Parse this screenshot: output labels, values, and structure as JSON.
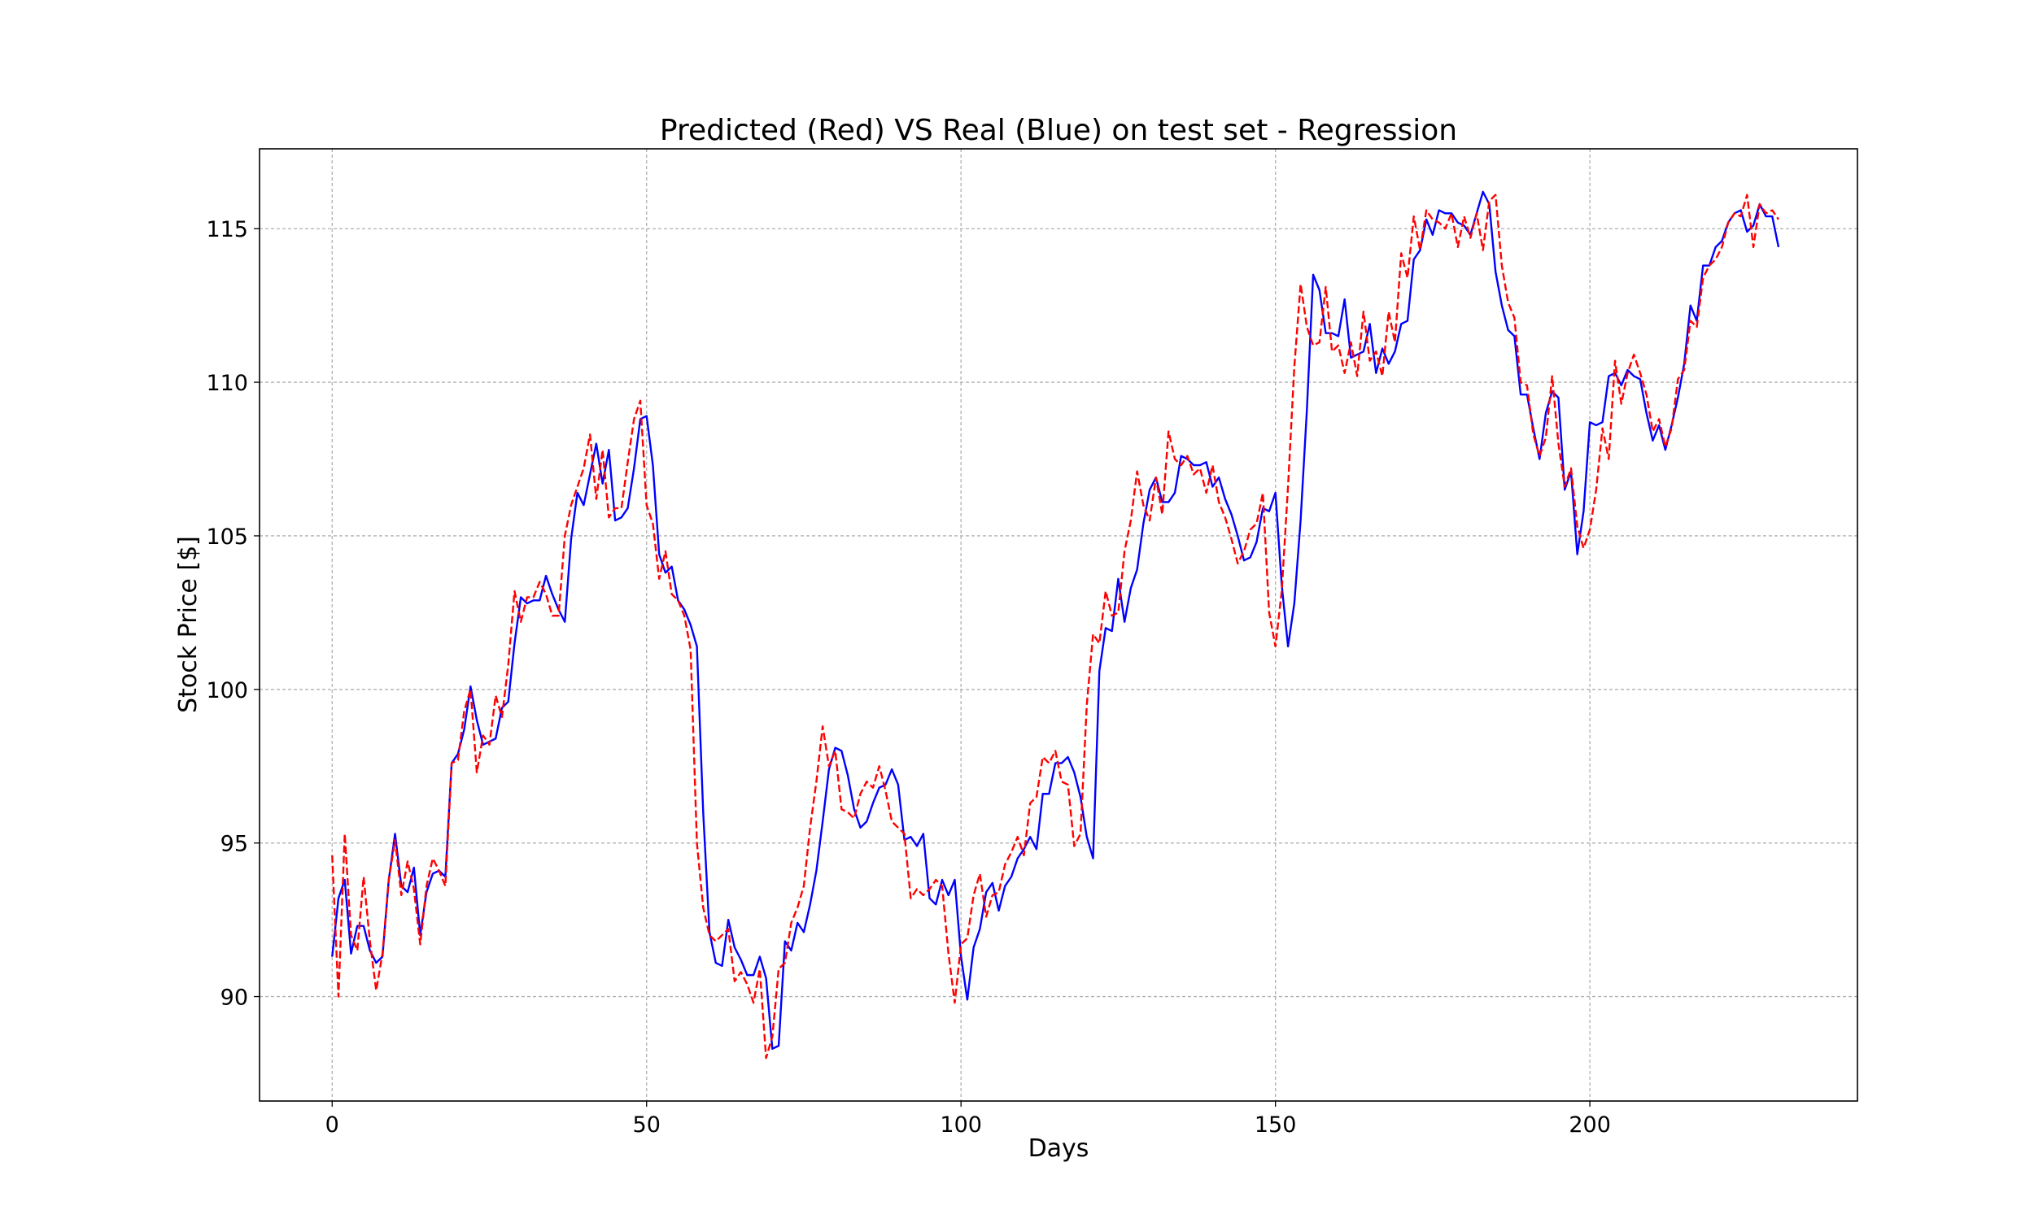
{
  "chart_data": {
    "type": "line",
    "title": "Predicted (Red) VS Real (Blue) on test set - Regression",
    "xlabel": "Days",
    "ylabel": "Stock Price [$]",
    "x": [
      0,
      1,
      2,
      3,
      4,
      5,
      6,
      7,
      8,
      9,
      10,
      11,
      12,
      13,
      14,
      15,
      16,
      17,
      18,
      19,
      20,
      21,
      22,
      23,
      24,
      25,
      26,
      27,
      28,
      29,
      30,
      31,
      32,
      33,
      34,
      35,
      36,
      37,
      38,
      39,
      40,
      41,
      42,
      43,
      44,
      45,
      46,
      47,
      48,
      49,
      50,
      51,
      52,
      53,
      54,
      55,
      56,
      57,
      58,
      59,
      60,
      61,
      62,
      63,
      64,
      65,
      66,
      67,
      68,
      69,
      70,
      71,
      72,
      73,
      74,
      75,
      76,
      77,
      78,
      79,
      80,
      81,
      82,
      83,
      84,
      85,
      86,
      87,
      88,
      89,
      90,
      91,
      92,
      93,
      94,
      95,
      96,
      97,
      98,
      99,
      100,
      101,
      102,
      103,
      104,
      105,
      106,
      107,
      108,
      109,
      110,
      111,
      112,
      113,
      114,
      115,
      116,
      117,
      118,
      119,
      120,
      121,
      122,
      123,
      124,
      125,
      126,
      127,
      128,
      129,
      130,
      131,
      132,
      133,
      134,
      135,
      136,
      137,
      138,
      139,
      140,
      141,
      142,
      143,
      144,
      145,
      146,
      147,
      148,
      149,
      150,
      151,
      152,
      153,
      154,
      155,
      156,
      157,
      158,
      159,
      160,
      161,
      162,
      163,
      164,
      165,
      166,
      167,
      168,
      169,
      170,
      171,
      172,
      173,
      174,
      175,
      176,
      177,
      178,
      179,
      180,
      181,
      182,
      183,
      184,
      185,
      186,
      187,
      188,
      189,
      190,
      191,
      192,
      193,
      194,
      195,
      196,
      197,
      198,
      199,
      200,
      201,
      202,
      203,
      204,
      205,
      206,
      207,
      208,
      209,
      210,
      211,
      212,
      213,
      214,
      215,
      216,
      217,
      218,
      219,
      220,
      221,
      222,
      223,
      224,
      225,
      226,
      227,
      228,
      229,
      230
    ],
    "series": [
      {
        "color": "#0000ff",
        "dash": "solid",
        "values": [
          91.3,
          93.2,
          93.8,
          91.4,
          92.3,
          92.3,
          91.5,
          91.1,
          91.3,
          93.8,
          95.3,
          93.6,
          93.4,
          94.2,
          92.0,
          93.4,
          94.0,
          94.1,
          93.9,
          97.6,
          97.9,
          98.7,
          100.1,
          99.0,
          98.2,
          98.3,
          98.4,
          99.4,
          99.6,
          101.5,
          103.0,
          102.8,
          102.9,
          102.9,
          103.7,
          103.1,
          102.6,
          102.2,
          104.9,
          106.4,
          106.0,
          107.0,
          108.0,
          106.7,
          107.8,
          105.5,
          105.6,
          105.9,
          107.2,
          108.8,
          108.9,
          107.3,
          104.4,
          103.8,
          104.0,
          102.9,
          102.6,
          102.1,
          101.4,
          96.0,
          92.1,
          91.1,
          91.0,
          92.5,
          91.6,
          91.2,
          90.7,
          90.7,
          91.3,
          90.6,
          88.3,
          88.4,
          91.8,
          91.5,
          92.4,
          92.1,
          93.0,
          94.1,
          95.7,
          97.4,
          98.1,
          98.0,
          97.2,
          96.1,
          95.5,
          95.7,
          96.3,
          96.8,
          96.9,
          97.4,
          96.9,
          95.1,
          95.2,
          94.9,
          95.3,
          93.2,
          93.0,
          93.8,
          93.3,
          93.8,
          91.3,
          89.9,
          91.6,
          92.2,
          93.4,
          93.7,
          92.8,
          93.6,
          93.9,
          94.5,
          94.8,
          95.2,
          94.8,
          96.6,
          96.6,
          97.6,
          97.6,
          97.8,
          97.3,
          96.5,
          95.2,
          94.5,
          100.6,
          102.0,
          101.9,
          103.6,
          102.2,
          103.3,
          103.9,
          105.4,
          106.5,
          106.9,
          106.1,
          106.1,
          106.4,
          107.6,
          107.5,
          107.3,
          107.3,
          107.4,
          106.6,
          106.9,
          106.2,
          105.7,
          105.0,
          104.2,
          104.3,
          104.8,
          105.9,
          105.8,
          106.4,
          103.4,
          101.4,
          102.8,
          105.5,
          109.1,
          113.5,
          113.0,
          111.6,
          111.6,
          111.5,
          112.7,
          110.8,
          110.9,
          111.0,
          111.9,
          110.3,
          111.1,
          110.6,
          111.0,
          111.9,
          112.0,
          114.0,
          114.3,
          115.3,
          114.8,
          115.6,
          115.5,
          115.5,
          115.2,
          115.1,
          114.8,
          115.5,
          116.2,
          115.8,
          113.6,
          112.5,
          111.7,
          111.5,
          109.6,
          109.6,
          108.5,
          107.5,
          109.0,
          109.7,
          109.5,
          106.5,
          107.1,
          104.4,
          105.8,
          108.7,
          108.6,
          108.7,
          110.2,
          110.3,
          109.9,
          110.4,
          110.2,
          110.1,
          109.0,
          108.1,
          108.6,
          107.8,
          108.6,
          109.5,
          110.6,
          112.5,
          112.0,
          113.8,
          113.8,
          114.4,
          114.6,
          115.2,
          115.5,
          115.6,
          114.9,
          115.1,
          115.8,
          115.4,
          115.4,
          114.4
        ]
      },
      {
        "color": "#ff0000",
        "dash": "dashed",
        "values": [
          94.6,
          90.0,
          95.3,
          92.0,
          91.5,
          93.9,
          91.8,
          90.2,
          91.4,
          93.8,
          95.1,
          93.3,
          94.4,
          93.5,
          91.7,
          93.6,
          94.5,
          94.1,
          93.6,
          97.6,
          97.7,
          99.3,
          100.0,
          97.3,
          98.5,
          98.2,
          99.8,
          99.1,
          100.8,
          103.2,
          102.2,
          103.0,
          103.0,
          103.5,
          103.1,
          102.4,
          102.4,
          105.0,
          106.0,
          106.6,
          107.2,
          108.3,
          106.2,
          107.8,
          105.6,
          105.9,
          105.9,
          107.4,
          108.8,
          109.4,
          106.0,
          105.4,
          103.6,
          104.5,
          103.1,
          102.9,
          102.4,
          101.3,
          95.0,
          92.9,
          92.0,
          91.8,
          92.0,
          92.2,
          90.5,
          90.8,
          90.4,
          89.8,
          90.9,
          88.0,
          88.7,
          90.9,
          91.1,
          92.4,
          92.9,
          93.6,
          95.5,
          97.0,
          98.8,
          97.5,
          98.0,
          96.1,
          96.0,
          95.8,
          96.6,
          97.0,
          96.8,
          97.5,
          96.7,
          95.7,
          95.5,
          95.3,
          93.2,
          93.5,
          93.3,
          93.5,
          93.8,
          93.6,
          91.4,
          89.8,
          91.7,
          91.9,
          93.3,
          94.0,
          92.6,
          93.3,
          93.4,
          94.3,
          94.7,
          95.2,
          94.6,
          96.3,
          96.5,
          97.8,
          97.6,
          98.0,
          97.0,
          96.9,
          94.9,
          95.3,
          99.5,
          101.8,
          101.5,
          103.2,
          102.4,
          102.5,
          104.5,
          105.5,
          107.1,
          106.0,
          105.5,
          106.9,
          105.7,
          108.4,
          107.5,
          107.3,
          107.6,
          107.0,
          107.2,
          106.4,
          107.3,
          106.1,
          105.6,
          104.9,
          104.1,
          104.5,
          105.2,
          105.4,
          106.4,
          102.5,
          101.4,
          103.2,
          106.6,
          110.5,
          113.2,
          111.8,
          111.2,
          111.3,
          113.1,
          111.0,
          111.2,
          110.3,
          111.3,
          110.2,
          112.3,
          110.7,
          111.0,
          110.2,
          112.3,
          111.3,
          114.2,
          113.4,
          115.4,
          114.3,
          115.6,
          115.3,
          115.2,
          115.0,
          115.5,
          114.4,
          115.4,
          114.7,
          115.5,
          114.3,
          115.9,
          116.1,
          113.8,
          112.6,
          112.1,
          110.0,
          109.9,
          108.3,
          107.6,
          108.2,
          110.2,
          108.0,
          106.6,
          107.2,
          105.3,
          104.6,
          105.2,
          106.5,
          108.5,
          107.5,
          110.7,
          109.3,
          110.3,
          110.9,
          110.3,
          109.6,
          108.4,
          108.8,
          107.9,
          108.5,
          110.1,
          110.4,
          112.0,
          111.8,
          113.4,
          113.8,
          114.0,
          114.4,
          115.2,
          115.5,
          115.4,
          116.1,
          114.4,
          115.8,
          115.5,
          115.6,
          115.3
        ]
      }
    ],
    "xlim": [
      -11.55,
      242.55
    ],
    "ylim": [
      86.6,
      117.6
    ],
    "xticks": [
      0,
      50,
      100,
      150,
      200
    ],
    "yticks": [
      90,
      95,
      100,
      105,
      110,
      115
    ],
    "grid": true
  }
}
